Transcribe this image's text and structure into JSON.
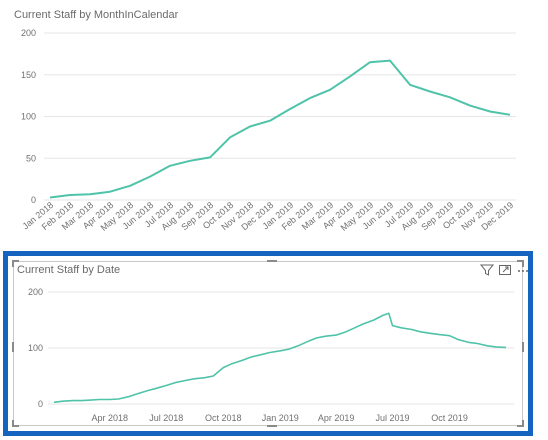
{
  "visual1": {
    "title": "Current Staff by MonthInCalendar",
    "chart_data": {
      "type": "line",
      "title": "Current Staff by MonthInCalendar",
      "xlabel": "",
      "ylabel": "",
      "ylim": [
        0,
        200
      ],
      "yticks": [
        "0",
        "50",
        "100",
        "150",
        "200"
      ],
      "grid": true,
      "categories": [
        "Jan 2018",
        "Feb 2018",
        "Mar 2018",
        "Apr 2018",
        "May 2018",
        "Jun 2018",
        "Jul 2018",
        "Aug 2018",
        "Sep 2018",
        "Oct 2018",
        "Nov 2018",
        "Dec 2018",
        "Jan 2019",
        "Feb 2019",
        "Mar 2019",
        "Apr 2019",
        "May 2019",
        "Jun 2019",
        "Jul 2019",
        "Aug 2019",
        "Sep 2019",
        "Oct 2019",
        "Nov 2019",
        "Dec 2019"
      ],
      "series": [
        {
          "values": [
            3,
            6,
            7,
            10,
            17,
            28,
            41,
            47,
            51,
            75,
            88,
            95,
            109,
            122,
            132,
            148,
            165,
            167,
            138,
            130,
            123,
            113,
            106,
            102
          ]
        }
      ],
      "color": "#4fc3a9"
    }
  },
  "visual2": {
    "title": "Current Staff by Date",
    "selected": true,
    "header_icons": [
      "filter-icon",
      "focus-mode-icon",
      "more-options-icon"
    ],
    "chart_data": {
      "type": "line",
      "title": "Current Staff by Date",
      "xlabel": "",
      "ylabel": "",
      "ylim": [
        0,
        200
      ],
      "yticks": [
        "0",
        "100",
        "200"
      ],
      "xticks": [
        "Apr 2018",
        "Jul 2018",
        "Oct 2018",
        "Jan 2019",
        "Apr 2019",
        "Jul 2019",
        "Oct 2019"
      ],
      "grid": true,
      "series": [
        {
          "x": [
            "2018-01-01",
            "2018-01-15",
            "2018-02-01",
            "2018-02-15",
            "2018-03-01",
            "2018-03-15",
            "2018-04-01",
            "2018-04-15",
            "2018-05-01",
            "2018-05-15",
            "2018-06-01",
            "2018-06-15",
            "2018-07-01",
            "2018-07-15",
            "2018-08-01",
            "2018-08-15",
            "2018-09-01",
            "2018-09-15",
            "2018-10-01",
            "2018-10-15",
            "2018-11-01",
            "2018-11-15",
            "2018-12-01",
            "2018-12-15",
            "2019-01-01",
            "2019-01-15",
            "2019-02-01",
            "2019-02-15",
            "2019-03-01",
            "2019-03-15",
            "2019-04-01",
            "2019-04-15",
            "2019-05-01",
            "2019-05-15",
            "2019-06-01",
            "2019-06-15",
            "2019-06-25",
            "2019-07-01",
            "2019-07-15",
            "2019-08-01",
            "2019-08-15",
            "2019-09-01",
            "2019-09-15",
            "2019-10-01",
            "2019-10-15",
            "2019-11-01",
            "2019-11-15",
            "2019-12-01",
            "2019-12-15",
            "2019-12-31"
          ],
          "values": [
            3,
            5,
            6,
            6,
            7,
            8,
            8,
            9,
            13,
            18,
            24,
            28,
            33,
            38,
            42,
            45,
            47,
            50,
            65,
            72,
            78,
            84,
            88,
            92,
            95,
            98,
            105,
            112,
            118,
            121,
            123,
            128,
            136,
            143,
            150,
            158,
            162,
            140,
            136,
            133,
            129,
            126,
            124,
            122,
            115,
            110,
            108,
            104,
            102,
            101
          ]
        }
      ],
      "color": "#4fc3a9"
    }
  }
}
